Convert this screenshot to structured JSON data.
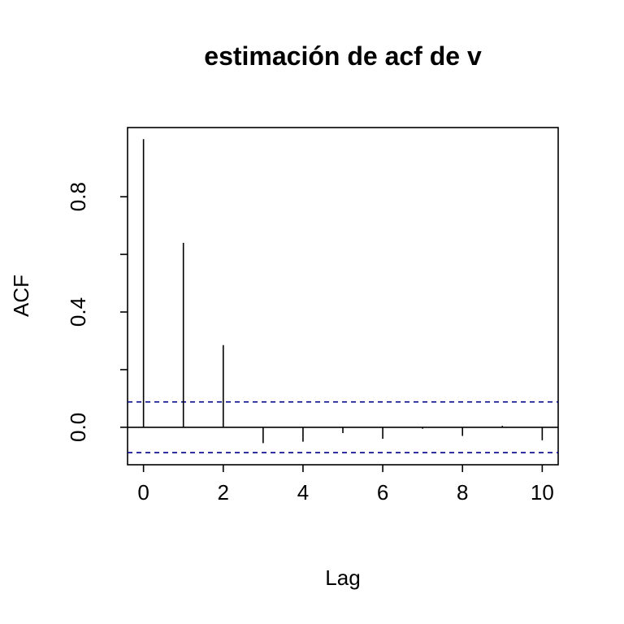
{
  "chart_data": {
    "type": "bar",
    "title": "estimación de acf de v",
    "xlabel": "Lag",
    "ylabel": "ACF",
    "x": [
      0,
      1,
      2,
      3,
      4,
      5,
      6,
      7,
      8,
      9,
      10
    ],
    "values": [
      1.0,
      0.64,
      0.285,
      -0.055,
      -0.05,
      -0.02,
      -0.04,
      -0.005,
      -0.03,
      0.005,
      -0.045
    ],
    "xlim": [
      -0.4,
      10.4
    ],
    "ylim": [
      -0.13,
      1.04
    ],
    "xticks": [
      0,
      2,
      4,
      6,
      8,
      10
    ],
    "xtick_labels": [
      "0",
      "2",
      "4",
      "6",
      "8",
      "10"
    ],
    "yticks": [
      0.0,
      0.4,
      0.8
    ],
    "ytick_labels": [
      "0.0",
      "0.4",
      "0.8"
    ],
    "yticks_minor": [
      0.2,
      0.6
    ],
    "confidence_bound": 0.088,
    "confidence_color": "#00008b",
    "bar_color": "#000000",
    "grid": false,
    "legend": "none"
  }
}
